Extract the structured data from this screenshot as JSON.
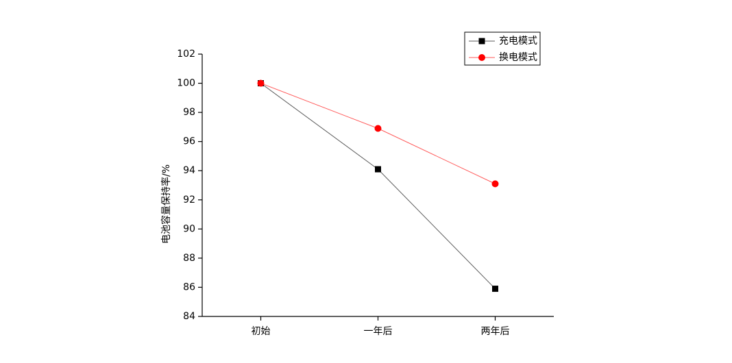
{
  "chart_data": {
    "type": "line",
    "y_label": "电池容量保持率/%",
    "categories": [
      "初始",
      "一年后",
      "两年后"
    ],
    "series": [
      {
        "name": "充电模式",
        "color": "#000000",
        "marker": "square",
        "values": [
          100,
          94.1,
          85.9
        ]
      },
      {
        "name": "换电模式",
        "color": "#ff0000",
        "marker": "circle",
        "values": [
          100,
          96.9,
          93.1
        ]
      }
    ],
    "ylim": [
      84,
      102
    ],
    "yticks": [
      84,
      86,
      88,
      90,
      92,
      94,
      96,
      98,
      100,
      102
    ],
    "grid": false,
    "legend": "top-right"
  }
}
